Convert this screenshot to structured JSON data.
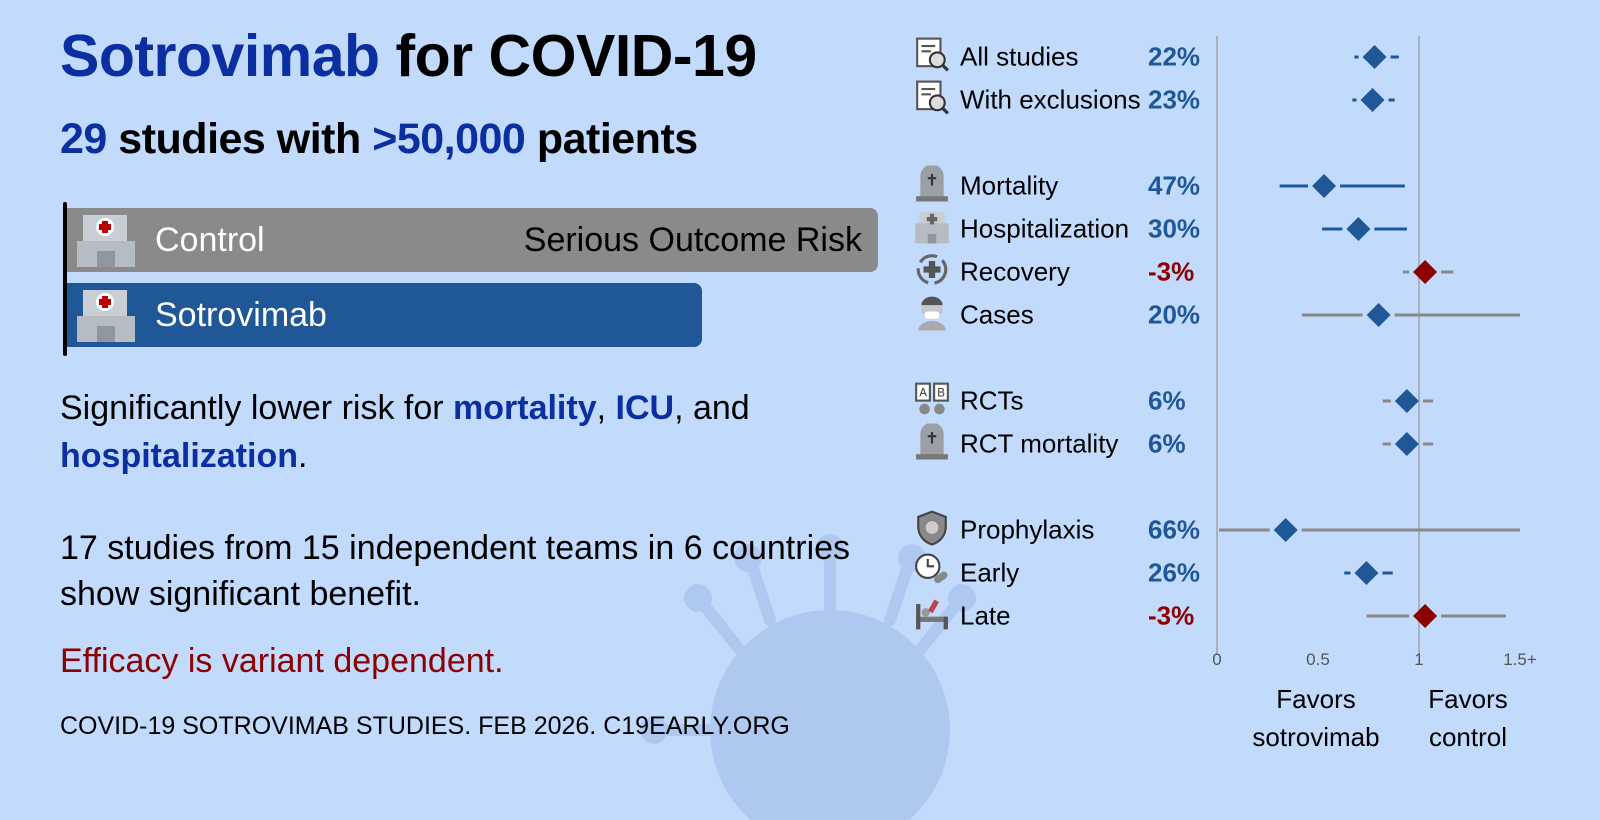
{
  "title": {
    "drug": "Sotrovimab",
    "rest": "for COVID-19"
  },
  "subtitle": {
    "studies": "29",
    "mid": "studies with",
    "patients": ">50,000",
    "end": "patients"
  },
  "bars": {
    "control_label": "Control",
    "treatment_label": "Sotrovimab",
    "metric_label": "Serious Outcome Risk"
  },
  "paragraphs": {
    "p1_a": "Significantly lower risk for ",
    "p1_b": "mortality",
    "p1_c": ", ",
    "p1_d": "ICU",
    "p1_e": ", and ",
    "p1_f": "hospitalization",
    "p1_g": ".",
    "p2": "17 studies from 15 independent teams in 6 countries show significant benefit.",
    "p3": "Efficacy is variant dependent."
  },
  "footer": "COVID-19 SOTROVIMAB STUDIES. FEB 2026. C19EARLY.ORG",
  "colors": {
    "background": "#c2dbfd",
    "benefit": "#1f5797",
    "harm": "#8b0000",
    "control_bar": "#8a8a8a",
    "highlight": "#0b2fa0",
    "ci_nonsig": "#888888"
  },
  "chart_data": {
    "type": "forest",
    "xlim": [
      0,
      1.5
    ],
    "x_ticks": [
      "0",
      "0.5",
      "1",
      "1.5+"
    ],
    "x_tick_values": [
      0,
      0.5,
      1,
      1.5
    ],
    "reference_line": 1,
    "left_label": "Favors sotrovimab",
    "right_label": "Favors control",
    "left_label_lines": [
      "Favors",
      "sotrovimab"
    ],
    "right_label_lines": [
      "Favors",
      "control"
    ],
    "rows": [
      {
        "label": "All studies",
        "pct": "22%",
        "icon": "document-search-icon",
        "group": 0,
        "rr": 0.78,
        "lo": 0.68,
        "hi": 0.9
      },
      {
        "label": "With exclusions",
        "pct": "23%",
        "icon": "document-search-icon",
        "group": 0,
        "rr": 0.77,
        "lo": 0.67,
        "hi": 0.88
      },
      {
        "label": "Mortality",
        "pct": "47%",
        "icon": "tombstone-icon",
        "group": 1,
        "rr": 0.53,
        "lo": 0.31,
        "hi": 0.93
      },
      {
        "label": "Hospitalization",
        "pct": "30%",
        "icon": "hospital-icon",
        "group": 1,
        "rr": 0.7,
        "lo": 0.52,
        "hi": 0.94
      },
      {
        "label": "Recovery",
        "pct": "-3%",
        "icon": "recovery-icon",
        "group": 1,
        "rr": 1.03,
        "lo": 0.92,
        "hi": 1.17
      },
      {
        "label": "Cases",
        "pct": "20%",
        "icon": "masked-person-icon",
        "group": 1,
        "rr": 0.8,
        "lo": 0.42,
        "hi": 1.5
      },
      {
        "label": "RCTs",
        "pct": "6%",
        "icon": "ab-test-icon",
        "group": 2,
        "rr": 0.94,
        "lo": 0.82,
        "hi": 1.07
      },
      {
        "label": "RCT mortality",
        "pct": "6%",
        "icon": "tombstone-icon",
        "group": 2,
        "rr": 0.94,
        "lo": 0.82,
        "hi": 1.07
      },
      {
        "label": "Prophylaxis",
        "pct": "66%",
        "icon": "shield-virus-icon",
        "group": 3,
        "rr": 0.34,
        "lo": 0.01,
        "hi": 1.5
      },
      {
        "label": "Early",
        "pct": "26%",
        "icon": "clock-pills-icon",
        "group": 3,
        "rr": 0.74,
        "lo": 0.63,
        "hi": 0.87
      },
      {
        "label": "Late",
        "pct": "-3%",
        "icon": "hospital-bed-icon",
        "group": 3,
        "rr": 1.03,
        "lo": 0.74,
        "hi": 1.43
      }
    ]
  }
}
